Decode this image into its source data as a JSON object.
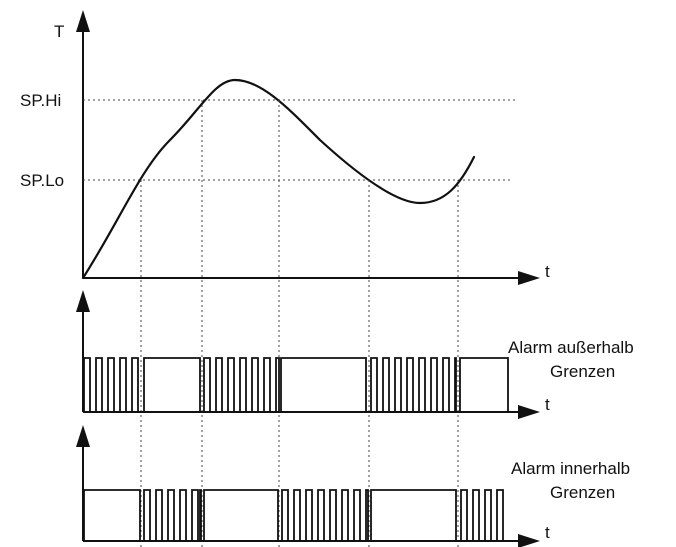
{
  "labels": {
    "y_axis": "T",
    "sp_hi": "SP.Hi",
    "sp_lo": "SP.Lo",
    "time_top": "t",
    "time_mid": "t",
    "time_bottom": "t",
    "alarm_outside_line1": "Alarm außerhalb",
    "alarm_outside_line2": "Grenzen",
    "alarm_inside_line1": "Alarm innerhalb",
    "alarm_inside_line2": "Grenzen"
  }
}
